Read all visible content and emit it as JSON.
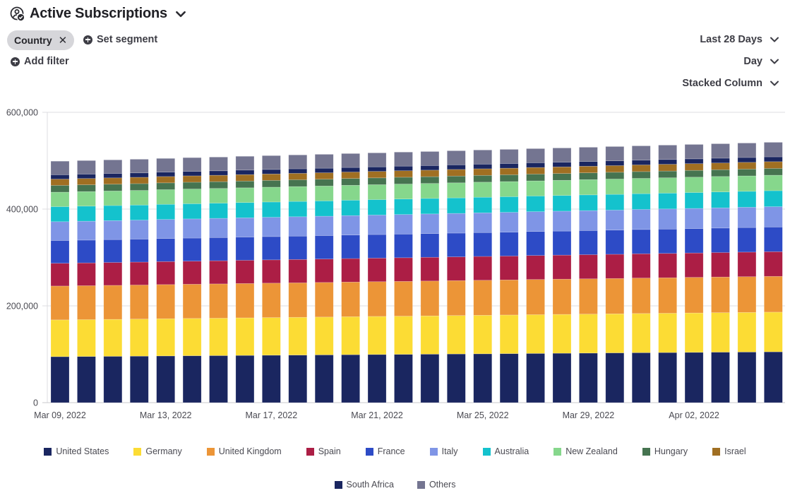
{
  "header": {
    "title": "Active Subscriptions",
    "title_icon": "user-check-icon"
  },
  "filters": {
    "segment_chip": "Country",
    "set_segment_label": "Set segment",
    "add_filter_label": "Add filter"
  },
  "controls": {
    "date_range": "Last 28 Days",
    "granularity": "Day",
    "chart_type": "Stacked Column"
  },
  "colors": {
    "United States": "#1a2660",
    "Germany": "#fcdc34",
    "United Kingdom": "#ec9537",
    "Spain": "#ac1e45",
    "France": "#2d4bc6",
    "Italy": "#7f95e6",
    "Australia": "#14c2cd",
    "New Zealand": "#86d78c",
    "Hungary": "#467450",
    "Israel": "#a06f22",
    "South Africa": "#1a2660",
    "Others": "#747591"
  },
  "chart_data": {
    "type": "bar",
    "stacked": true,
    "title": "Active Subscriptions",
    "xlabel": "",
    "ylabel": "",
    "ylim": [
      0,
      600000
    ],
    "yticks": [
      0,
      200000,
      400000,
      600000
    ],
    "ytick_labels": [
      "0",
      "200,000",
      "400,000",
      "600,000"
    ],
    "grid": true,
    "legend_position": "bottom",
    "categories": [
      "Mar 09, 2022",
      "Mar 10, 2022",
      "Mar 11, 2022",
      "Mar 12, 2022",
      "Mar 13, 2022",
      "Mar 14, 2022",
      "Mar 15, 2022",
      "Mar 16, 2022",
      "Mar 17, 2022",
      "Mar 18, 2022",
      "Mar 19, 2022",
      "Mar 20, 2022",
      "Mar 21, 2022",
      "Mar 22, 2022",
      "Mar 23, 2022",
      "Mar 24, 2022",
      "Mar 25, 2022",
      "Mar 26, 2022",
      "Mar 27, 2022",
      "Mar 28, 2022",
      "Mar 29, 2022",
      "Mar 30, 2022",
      "Mar 31, 2022",
      "Apr 01, 2022",
      "Apr 02, 2022",
      "Apr 03, 2022",
      "Apr 04, 2022",
      "Apr 05, 2022"
    ],
    "xtick_labels": [
      "Mar 09, 2022",
      "Mar 13, 2022",
      "Mar 17, 2022",
      "Mar 21, 2022",
      "Mar 25, 2022",
      "Mar 29, 2022",
      "Apr 02, 2022"
    ],
    "series": [
      {
        "name": "United States",
        "values": [
          95000,
          95400,
          95700,
          96100,
          96500,
          96900,
          97200,
          97600,
          98000,
          98300,
          98700,
          99100,
          99500,
          99800,
          100200,
          100600,
          100900,
          101300,
          101700,
          102100,
          102400,
          102800,
          103200,
          103500,
          103900,
          104300,
          104600,
          105000
        ]
      },
      {
        "name": "Germany",
        "values": [
          76000,
          76200,
          76400,
          76600,
          76900,
          77100,
          77300,
          77600,
          77800,
          78000,
          78200,
          78500,
          78700,
          78900,
          79100,
          79400,
          79600,
          79800,
          80100,
          80300,
          80500,
          80700,
          81000,
          81200,
          81400,
          81600,
          81800,
          82000
        ]
      },
      {
        "name": "United Kingdom",
        "values": [
          70000,
          70100,
          70300,
          70400,
          70600,
          70700,
          70900,
          71000,
          71200,
          71300,
          71500,
          71600,
          71800,
          71900,
          72100,
          72200,
          72400,
          72500,
          72700,
          72800,
          73000,
          73100,
          73300,
          73400,
          73600,
          73700,
          73900,
          74000
        ]
      },
      {
        "name": "Spain",
        "values": [
          47000,
          47100,
          47300,
          47400,
          47600,
          47700,
          47900,
          48000,
          48100,
          48300,
          48400,
          48600,
          48700,
          48900,
          49000,
          49100,
          49300,
          49400,
          49600,
          49700,
          49900,
          50000,
          50200,
          50300,
          50400,
          50600,
          50800,
          51000
        ]
      },
      {
        "name": "France",
        "values": [
          47000,
          47100,
          47300,
          47400,
          47600,
          47700,
          47900,
          48000,
          48100,
          48300,
          48400,
          48600,
          48700,
          48900,
          49000,
          49100,
          49300,
          49400,
          49600,
          49700,
          49900,
          50000,
          50200,
          50300,
          50400,
          50600,
          50800,
          51000
        ]
      },
      {
        "name": "Italy",
        "values": [
          39000,
          39100,
          39200,
          39300,
          39400,
          39600,
          39700,
          39800,
          39900,
          40000,
          40100,
          40200,
          40300,
          40400,
          40600,
          40700,
          40800,
          40900,
          41000,
          41100,
          41200,
          41300,
          41400,
          41600,
          41700,
          41800,
          41900,
          42000
        ]
      },
      {
        "name": "Australia",
        "values": [
          31000,
          31100,
          31100,
          31200,
          31300,
          31400,
          31400,
          31500,
          31600,
          31700,
          31700,
          31800,
          31900,
          32000,
          32000,
          32100,
          32200,
          32300,
          32300,
          32400,
          32500,
          32600,
          32600,
          32700,
          32800,
          32900,
          32900,
          33000
        ]
      },
      {
        "name": "New Zealand",
        "values": [
          30000,
          30100,
          30100,
          30200,
          30300,
          30400,
          30400,
          30500,
          30600,
          30700,
          30700,
          30800,
          30900,
          31000,
          31000,
          31100,
          31200,
          31300,
          31300,
          31400,
          31500,
          31600,
          31600,
          31700,
          31800,
          31900,
          31900,
          32000
        ]
      },
      {
        "name": "Hungary",
        "values": [
          14000,
          14000,
          14000,
          14000,
          14000,
          14000,
          14000,
          14000,
          14000,
          14000,
          14000,
          14000,
          14000,
          14000,
          14000,
          14000,
          14000,
          14000,
          14000,
          14000,
          14000,
          14000,
          14000,
          14000,
          14000,
          14000,
          14000,
          14000
        ]
      },
      {
        "name": "Israel",
        "values": [
          13000,
          13000,
          13100,
          13100,
          13100,
          13200,
          13200,
          13300,
          13300,
          13300,
          13400,
          13400,
          13400,
          13500,
          13500,
          13600,
          13600,
          13600,
          13700,
          13700,
          13700,
          13800,
          13800,
          13900,
          13900,
          13900,
          14000,
          14000
        ]
      },
      {
        "name": "South Africa",
        "values": [
          9000,
          9000,
          9100,
          9100,
          9100,
          9200,
          9200,
          9300,
          9300,
          9300,
          9400,
          9400,
          9400,
          9500,
          9500,
          9600,
          9600,
          9600,
          9700,
          9700,
          9700,
          9800,
          9800,
          9900,
          9900,
          9900,
          10000,
          10000
        ]
      },
      {
        "name": "Others",
        "values": [
          28000,
          28100,
          28100,
          28200,
          28300,
          28400,
          28400,
          28500,
          28600,
          28700,
          28700,
          28800,
          28900,
          29000,
          29000,
          29100,
          29200,
          29300,
          29300,
          29400,
          29500,
          29600,
          29600,
          29700,
          29800,
          29900,
          29900,
          30000
        ]
      }
    ]
  },
  "legend": {
    "row1": [
      "United States",
      "Germany",
      "United Kingdom",
      "Spain",
      "France",
      "Italy",
      "Australia",
      "New Zealand",
      "Hungary",
      "Israel"
    ],
    "row2": [
      "South Africa",
      "Others"
    ]
  }
}
